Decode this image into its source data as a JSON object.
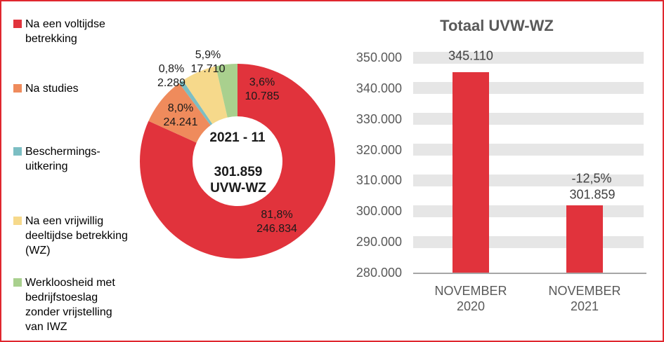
{
  "legend": {
    "items": [
      {
        "label": "Na een voltijdse\nbetrekking",
        "color": "#E1333C"
      },
      {
        "label": "Na studies",
        "color": "#EF8B5C"
      },
      {
        "label": "Beschermings-\nuitkering",
        "color": "#7CBEC3"
      },
      {
        "label": "Na een vrijwillig\ndeeltijdse betrekking\n(WZ)",
        "color": "#F6D98B"
      },
      {
        "label": "Werkloosheid met\nbedrijfstoeslag\nzonder vrijstelling\nvan IWZ",
        "color": "#A9D08E"
      }
    ]
  },
  "chart_data": [
    {
      "type": "pie",
      "subtype": "donut",
      "start_angle_deg": 0,
      "direction": "clockwise",
      "center": {
        "line1": "2021 - 11",
        "line2": "301.859",
        "line3": "UVW-WZ"
      },
      "total_value": 301859,
      "slices": [
        {
          "name": "Na een voltijdse betrekking",
          "percent": 81.8,
          "value": 246834,
          "percent_label": "81,8%",
          "value_label": "246.834",
          "color": "#E1333C"
        },
        {
          "name": "Na studies",
          "percent": 8.0,
          "value": 24241,
          "percent_label": "8,0%",
          "value_label": "24.241",
          "color": "#EF8B5C"
        },
        {
          "name": "Beschermingsuitkering",
          "percent": 0.8,
          "value": 2289,
          "percent_label": "0,8%",
          "value_label": "2.289",
          "color": "#7CBEC3"
        },
        {
          "name": "Na een vrijwillig deeltijdse betrekking (WZ)",
          "percent": 5.9,
          "value": 17710,
          "percent_label": "5,9%",
          "value_label": "17.710",
          "color": "#F6D98B"
        },
        {
          "name": "Werkloosheid met bedrijfstoeslag zonder vrijstelling van IWZ",
          "percent": 3.6,
          "value": 10785,
          "percent_label": "3,6%",
          "value_label": "10.785",
          "color": "#A9D08E"
        }
      ]
    },
    {
      "type": "bar",
      "title": "Totaal UVW-WZ",
      "categories": [
        "NOVEMBER\n2020",
        "NOVEMBER\n2021"
      ],
      "values": [
        345110,
        301859
      ],
      "bar_labels": [
        [
          "345.110"
        ],
        [
          "-12,5%",
          "301.859"
        ]
      ],
      "y_ticks": [
        "350.000",
        "340.000",
        "330.000",
        "320.000",
        "310.000",
        "300.000",
        "290.000",
        "280.000"
      ],
      "y_tick_values": [
        350000,
        340000,
        330000,
        320000,
        310000,
        300000,
        290000,
        280000
      ],
      "ylim": [
        280000,
        350000
      ],
      "grid": "horizontal-bands",
      "legend_position": "none",
      "bar_color": "#E1333C",
      "grid_band_color": "#E6E6E6",
      "axis_line_color": "#A6A6A6"
    }
  ],
  "colors": {
    "frame_border": "#E0262E",
    "accent_red": "#E1333C",
    "title_text": "#595959",
    "axis_text": "#595959",
    "value_text": "#3F3F3F"
  }
}
